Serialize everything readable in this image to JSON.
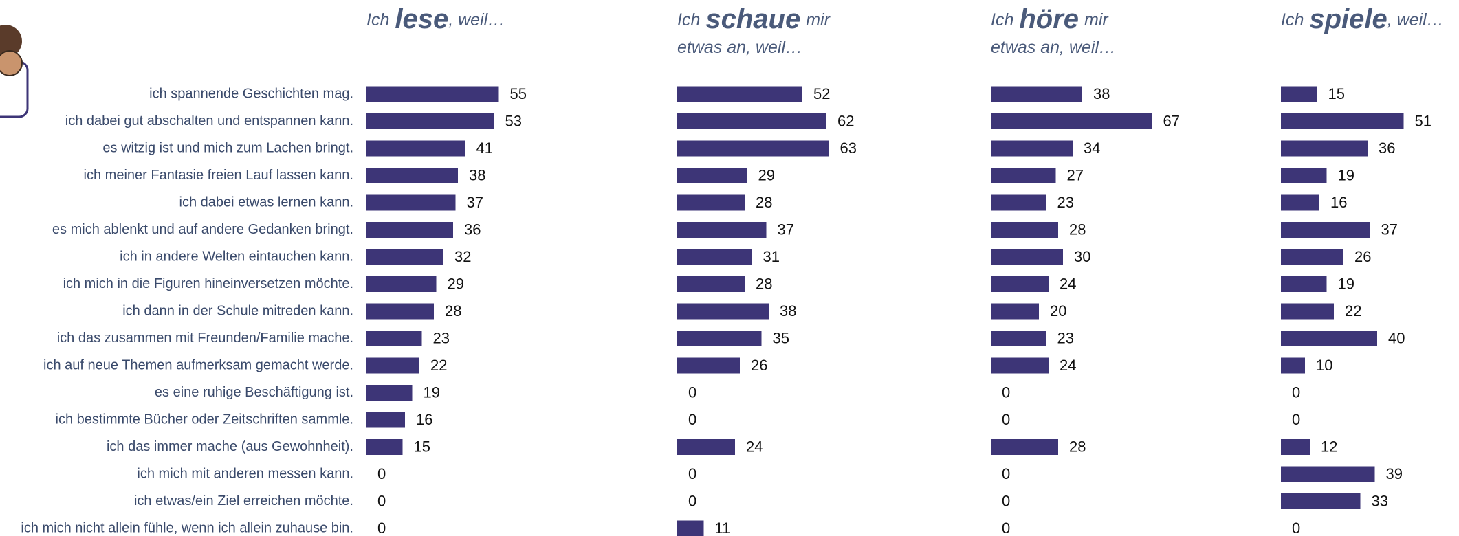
{
  "chart_data": {
    "type": "bar",
    "orientation": "horizontal",
    "color": "#3d3577",
    "categories": [
      "ich spannende Geschichten mag.",
      "ich dabei gut abschalten und entspannen kann.",
      "es witzig ist und mich zum Lachen bringt.",
      "ich meiner Fantasie freien Lauf lassen kann.",
      "ich dabei etwas lernen kann.",
      "es mich ablenkt und auf andere Gedanken bringt.",
      "ich in andere Welten eintauchen kann.",
      "ich mich in die Figuren hineinversetzen möchte.",
      "ich dann in der Schule mitreden kann.",
      "ich das zusammen mit Freunden/Familie mache.",
      "ich auf neue Themen aufmerksam gemacht werde.",
      "es eine ruhige Beschäftigung ist.",
      "ich bestimmte Bücher oder Zeitschriften sammle.",
      "ich das immer mache (aus Gewohnheit).",
      "ich mich mit anderen messen kann.",
      "ich etwas/ein Ziel erreichen möchte.",
      "ich mich nicht allein fühle, wenn ich allein zuhause bin."
    ],
    "panels": [
      {
        "title": [
          [
            "Ich",
            "lese",
            ", weil…"
          ]
        ],
        "values": [
          55,
          53,
          41,
          38,
          37,
          36,
          32,
          29,
          28,
          23,
          22,
          19,
          16,
          15,
          0,
          0,
          0
        ]
      },
      {
        "title": [
          [
            "Ich",
            "schaue",
            "mir"
          ],
          [
            "etwas an, weil…"
          ]
        ],
        "values": [
          52,
          62,
          63,
          29,
          28,
          37,
          31,
          28,
          38,
          35,
          26,
          0,
          0,
          24,
          0,
          0,
          11
        ]
      },
      {
        "title": [
          [
            "Ich",
            "höre",
            "mir"
          ],
          [
            "etwas an, weil…"
          ]
        ],
        "values": [
          38,
          67,
          34,
          27,
          23,
          28,
          30,
          24,
          20,
          23,
          24,
          0,
          0,
          28,
          0,
          0,
          0
        ]
      },
      {
        "title": [
          [
            "Ich",
            "spiele",
            ", weil…"
          ]
        ],
        "values": [
          15,
          51,
          36,
          19,
          16,
          37,
          26,
          19,
          22,
          40,
          10,
          0,
          0,
          12,
          39,
          33,
          0
        ]
      }
    ]
  }
}
